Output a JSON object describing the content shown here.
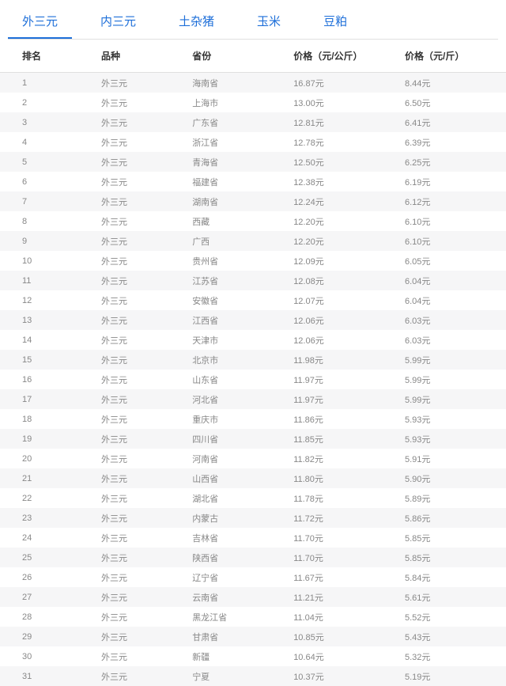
{
  "tabs": [
    {
      "label": "外三元",
      "active": true
    },
    {
      "label": "内三元",
      "active": false
    },
    {
      "label": "土杂猪",
      "active": false
    },
    {
      "label": "玉米",
      "active": false
    },
    {
      "label": "豆粕",
      "active": false
    }
  ],
  "table": {
    "columns": {
      "rank": "排名",
      "breed": "品种",
      "province": "省份",
      "price_kg": "价格（元/公斤）",
      "price_jin": "价格（元/斤）"
    },
    "rows": [
      {
        "rank": "1",
        "breed": "外三元",
        "province": "海南省",
        "price_kg": "16.87元",
        "price_jin": "8.44元"
      },
      {
        "rank": "2",
        "breed": "外三元",
        "province": "上海市",
        "price_kg": "13.00元",
        "price_jin": "6.50元"
      },
      {
        "rank": "3",
        "breed": "外三元",
        "province": "广东省",
        "price_kg": "12.81元",
        "price_jin": "6.41元"
      },
      {
        "rank": "4",
        "breed": "外三元",
        "province": "浙江省",
        "price_kg": "12.78元",
        "price_jin": "6.39元"
      },
      {
        "rank": "5",
        "breed": "外三元",
        "province": "青海省",
        "price_kg": "12.50元",
        "price_jin": "6.25元"
      },
      {
        "rank": "6",
        "breed": "外三元",
        "province": "福建省",
        "price_kg": "12.38元",
        "price_jin": "6.19元"
      },
      {
        "rank": "7",
        "breed": "外三元",
        "province": "湖南省",
        "price_kg": "12.24元",
        "price_jin": "6.12元"
      },
      {
        "rank": "8",
        "breed": "外三元",
        "province": "西藏",
        "price_kg": "12.20元",
        "price_jin": "6.10元"
      },
      {
        "rank": "9",
        "breed": "外三元",
        "province": "广西",
        "price_kg": "12.20元",
        "price_jin": "6.10元"
      },
      {
        "rank": "10",
        "breed": "外三元",
        "province": "贵州省",
        "price_kg": "12.09元",
        "price_jin": "6.05元"
      },
      {
        "rank": "11",
        "breed": "外三元",
        "province": "江苏省",
        "price_kg": "12.08元",
        "price_jin": "6.04元"
      },
      {
        "rank": "12",
        "breed": "外三元",
        "province": "安徽省",
        "price_kg": "12.07元",
        "price_jin": "6.04元"
      },
      {
        "rank": "13",
        "breed": "外三元",
        "province": "江西省",
        "price_kg": "12.06元",
        "price_jin": "6.03元"
      },
      {
        "rank": "14",
        "breed": "外三元",
        "province": "天津市",
        "price_kg": "12.06元",
        "price_jin": "6.03元"
      },
      {
        "rank": "15",
        "breed": "外三元",
        "province": "北京市",
        "price_kg": "11.98元",
        "price_jin": "5.99元"
      },
      {
        "rank": "16",
        "breed": "外三元",
        "province": "山东省",
        "price_kg": "11.97元",
        "price_jin": "5.99元"
      },
      {
        "rank": "17",
        "breed": "外三元",
        "province": "河北省",
        "price_kg": "11.97元",
        "price_jin": "5.99元"
      },
      {
        "rank": "18",
        "breed": "外三元",
        "province": "重庆市",
        "price_kg": "11.86元",
        "price_jin": "5.93元"
      },
      {
        "rank": "19",
        "breed": "外三元",
        "province": "四川省",
        "price_kg": "11.85元",
        "price_jin": "5.93元"
      },
      {
        "rank": "20",
        "breed": "外三元",
        "province": "河南省",
        "price_kg": "11.82元",
        "price_jin": "5.91元"
      },
      {
        "rank": "21",
        "breed": "外三元",
        "province": "山西省",
        "price_kg": "11.80元",
        "price_jin": "5.90元"
      },
      {
        "rank": "22",
        "breed": "外三元",
        "province": "湖北省",
        "price_kg": "11.78元",
        "price_jin": "5.89元"
      },
      {
        "rank": "23",
        "breed": "外三元",
        "province": "内蒙古",
        "price_kg": "11.72元",
        "price_jin": "5.86元"
      },
      {
        "rank": "24",
        "breed": "外三元",
        "province": "吉林省",
        "price_kg": "11.70元",
        "price_jin": "5.85元"
      },
      {
        "rank": "25",
        "breed": "外三元",
        "province": "陕西省",
        "price_kg": "11.70元",
        "price_jin": "5.85元"
      },
      {
        "rank": "26",
        "breed": "外三元",
        "province": "辽宁省",
        "price_kg": "11.67元",
        "price_jin": "5.84元"
      },
      {
        "rank": "27",
        "breed": "外三元",
        "province": "云南省",
        "price_kg": "11.21元",
        "price_jin": "5.61元"
      },
      {
        "rank": "28",
        "breed": "外三元",
        "province": "黑龙江省",
        "price_kg": "11.04元",
        "price_jin": "5.52元"
      },
      {
        "rank": "29",
        "breed": "外三元",
        "province": "甘肃省",
        "price_kg": "10.85元",
        "price_jin": "5.43元"
      },
      {
        "rank": "30",
        "breed": "外三元",
        "province": "新疆",
        "price_kg": "10.64元",
        "price_jin": "5.32元"
      },
      {
        "rank": "31",
        "breed": "外三元",
        "province": "宁夏",
        "price_kg": "10.37元",
        "price_jin": "5.19元"
      }
    ]
  },
  "style": {
    "accent_color": "#1e6fd9",
    "odd_row_bg": "#f6f6f7",
    "even_row_bg": "#ffffff",
    "border_color": "#e0e0e0",
    "header_text_color": "#333333",
    "body_text_color": "#888888"
  }
}
